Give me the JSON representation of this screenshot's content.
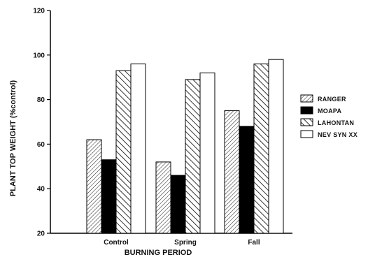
{
  "chart_data": {
    "type": "bar",
    "title": "",
    "xlabel": "BURNING PERIOD",
    "ylabel": "PLANT TOP WEIGHT (%control)",
    "categories": [
      "Control",
      "Spring",
      "Fall"
    ],
    "ylim": [
      20,
      120
    ],
    "yticks": [
      "20",
      "40",
      "60",
      "80",
      "100",
      "120"
    ],
    "grid": false,
    "legend_position": "right",
    "series": [
      {
        "name": "RANGER",
        "pattern": "diagonal-fine",
        "values": [
          62,
          52,
          75
        ]
      },
      {
        "name": "MOAPA",
        "pattern": "solid-black",
        "values": [
          53,
          46,
          68
        ]
      },
      {
        "name": "LAHONTAN",
        "pattern": "diagonal-coarse",
        "values": [
          93,
          89,
          96
        ]
      },
      {
        "name": "NEV SYN XX",
        "pattern": "white",
        "values": [
          96,
          92,
          98
        ]
      }
    ]
  }
}
